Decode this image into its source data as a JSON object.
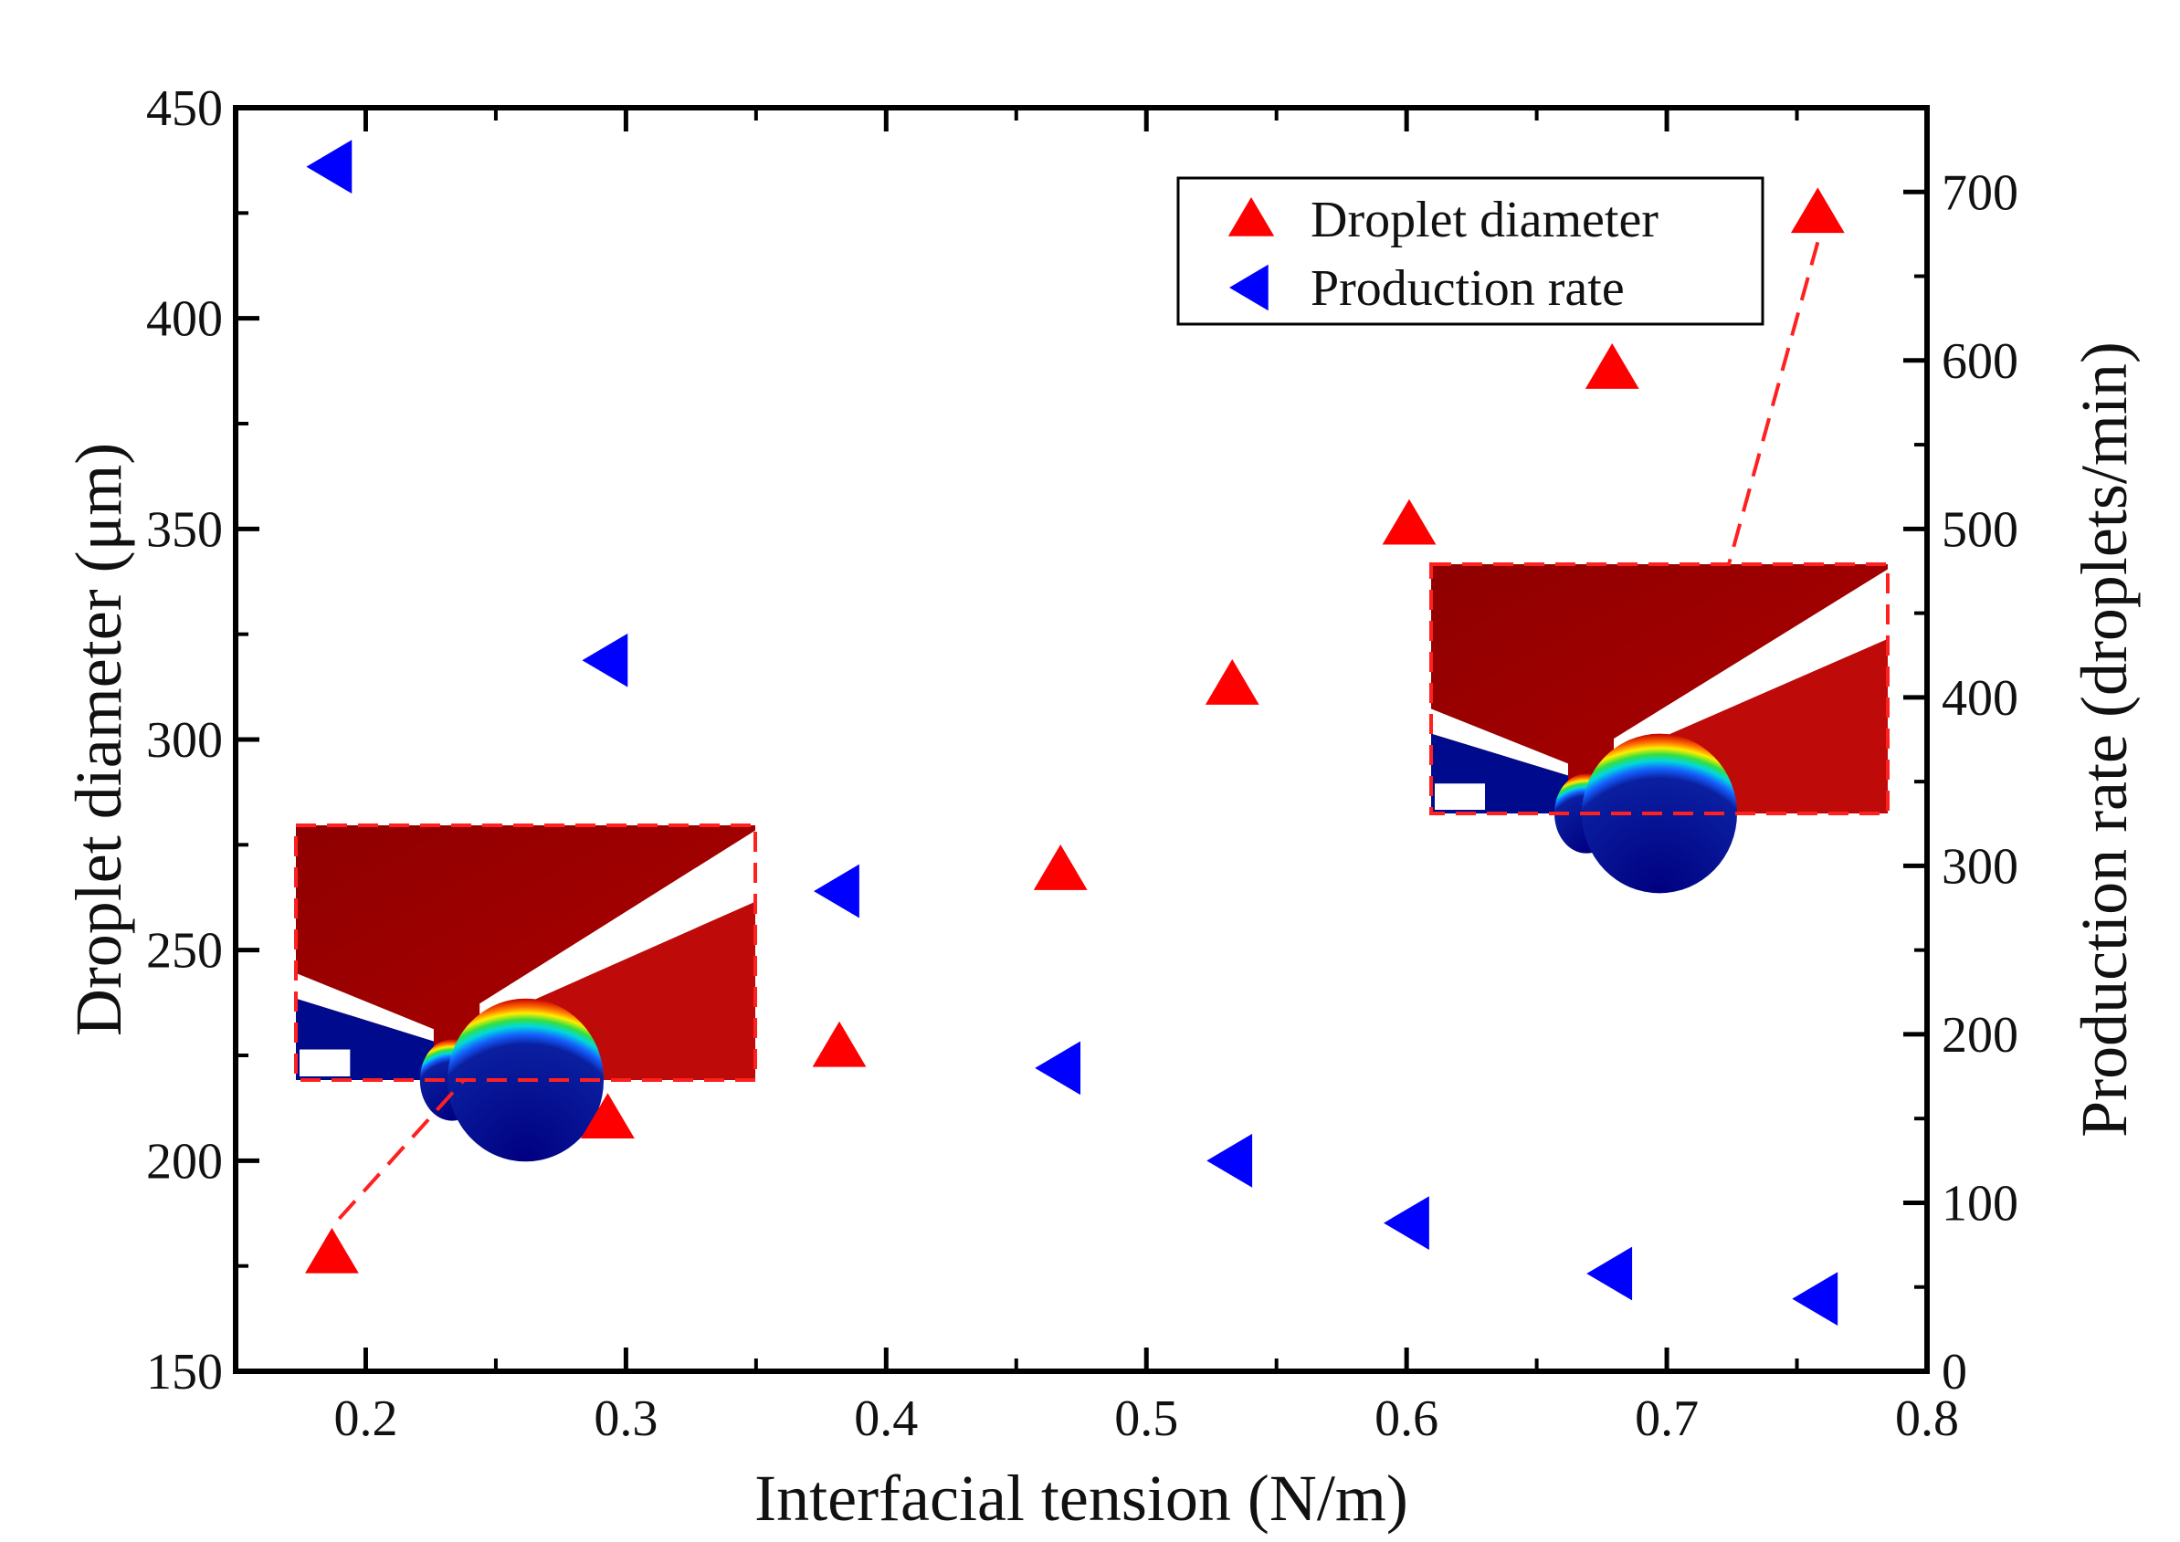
{
  "chart_data": {
    "type": "scatter",
    "xlabel": "Interfacial tension (N/m)",
    "ylabel_left": "Droplet diameter (μm)",
    "ylabel_right": "Production rate (droplets/min)",
    "xlim": [
      0.15,
      0.8
    ],
    "ylim_left": [
      150,
      450
    ],
    "ylim_right": [
      0,
      750
    ],
    "x_ticks": [
      "0.2",
      "0.3",
      "0.4",
      "0.5",
      "0.6",
      "0.7",
      "0.8"
    ],
    "y_left_ticks": [
      "150",
      "200",
      "250",
      "300",
      "350",
      "400",
      "450"
    ],
    "y_right_ticks": [
      "0",
      "100",
      "200",
      "300",
      "400",
      "500",
      "600",
      "700"
    ],
    "legend_position": "top-right",
    "series": [
      {
        "name": "Droplet diameter",
        "axis": "left",
        "marker": "triangle-up",
        "color": "#ff0000",
        "x": [
          0.187,
          0.293,
          0.382,
          0.467,
          0.533,
          0.601,
          0.679,
          0.758
        ],
        "y": [
          178,
          210,
          227,
          269,
          313,
          351,
          388,
          425
        ]
      },
      {
        "name": "Production rate",
        "axis": "right",
        "marker": "triangle-left",
        "color": "#0000ff",
        "x": [
          0.187,
          0.293,
          0.382,
          0.467,
          0.533,
          0.601,
          0.679,
          0.758
        ],
        "y": [
          715,
          422,
          285,
          180,
          125,
          88,
          58,
          43
        ]
      }
    ],
    "insets": [
      {
        "name": "low-tension-droplet-simulation",
        "points_to": {
          "series": "Droplet diameter",
          "x": 0.187
        }
      },
      {
        "name": "high-tension-droplet-simulation",
        "points_to": {
          "series": "Droplet diameter",
          "x": 0.758
        }
      }
    ]
  }
}
